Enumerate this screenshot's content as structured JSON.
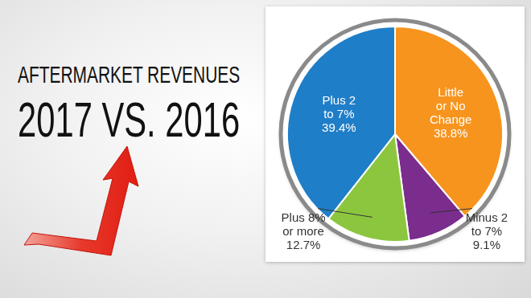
{
  "chart_data": {
    "type": "pie",
    "title": [
      "AFTERMARKET REVENUES",
      "2017 VS. 2016"
    ],
    "categories": [
      "Little or No Change",
      "Minus 2 to 7%",
      "Plus 8% or more",
      "Plus 2 to 7%"
    ],
    "values": [
      38.8,
      9.1,
      12.7,
      39.4
    ],
    "value_labels": [
      "38.8%",
      "9.1%",
      "12.7%",
      "39.4%"
    ],
    "colors": [
      "#f7941d",
      "#7a2d8c",
      "#8cc63f",
      "#1f7ec8"
    ],
    "data_labels": true
  }
}
